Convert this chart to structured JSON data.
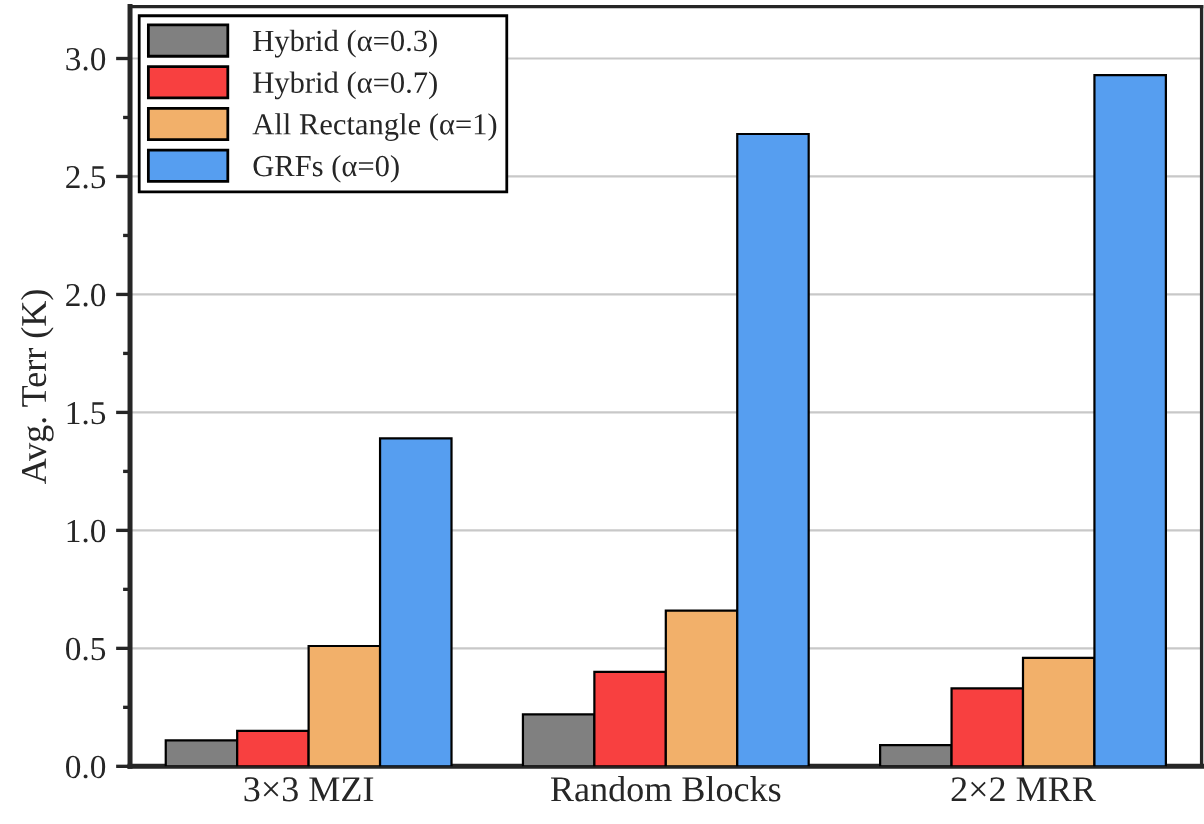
{
  "chart_data": {
    "type": "bar",
    "ylabel": "Avg. Terr (K)",
    "categories": [
      "3×3 MZI",
      "Random Blocks",
      "2×2 MRR"
    ],
    "series": [
      {
        "name": "Hybrid (α=0.3)",
        "color": "#808080",
        "values": [
          0.11,
          0.22,
          0.09
        ]
      },
      {
        "name": "Hybrid (α=0.7)",
        "color": "#f84040",
        "values": [
          0.15,
          0.4,
          0.33
        ]
      },
      {
        "name": "All Rectangle (α=1)",
        "color": "#f2b06a",
        "values": [
          0.51,
          0.66,
          0.46
        ]
      },
      {
        "name": "GRFs (α=0)",
        "color": "#569ef0",
        "values": [
          1.39,
          2.68,
          2.93
        ]
      }
    ],
    "ylim": [
      0,
      3.22
    ],
    "yticks": [
      {
        "value": 0,
        "label": "0.0"
      },
      {
        "value": 0.5,
        "label": "0.5"
      },
      {
        "value": 1,
        "label": "1.0"
      },
      {
        "value": 1.5,
        "label": "1.5"
      },
      {
        "value": 2,
        "label": "2.0"
      },
      {
        "value": 2.5,
        "label": "2.5"
      },
      {
        "value": 3,
        "label": "3.0"
      }
    ],
    "grid": "y",
    "legend": "top left"
  }
}
